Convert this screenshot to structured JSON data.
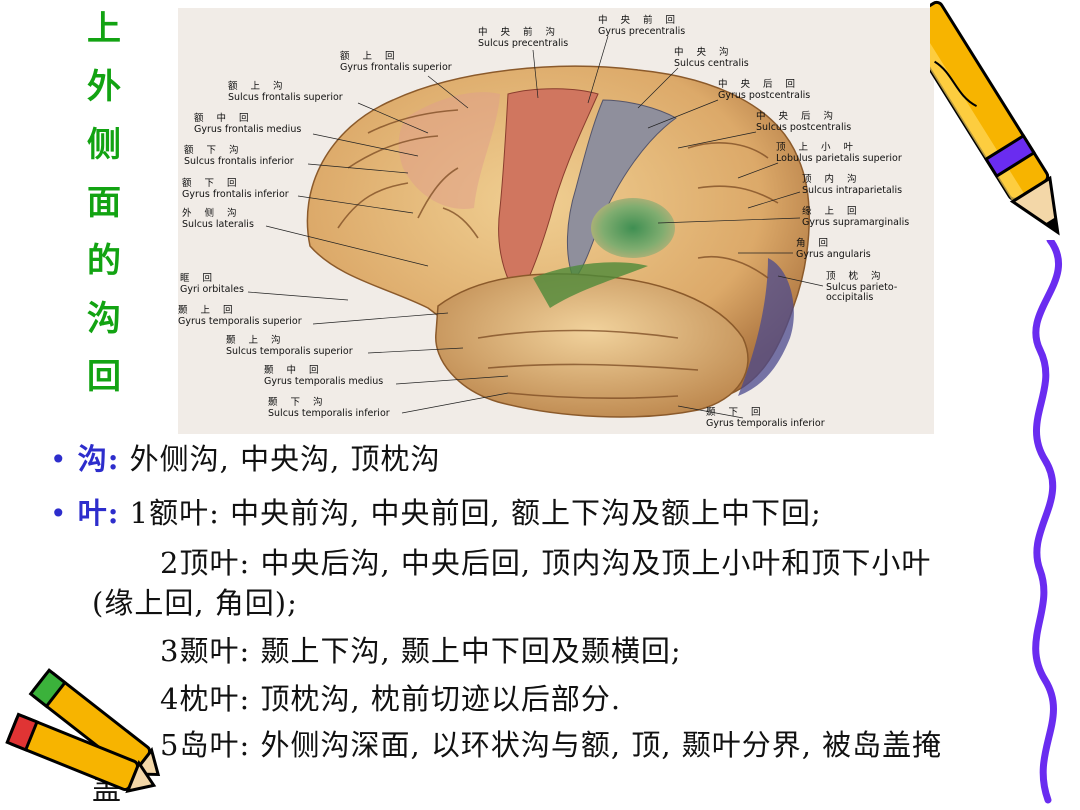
{
  "title_chars": [
    "上",
    "外",
    "侧",
    "面",
    "的",
    "沟",
    "回"
  ],
  "figure": {
    "labels_left": [
      {
        "cn": "额 上 回",
        "la": "Gyrus frontalis superior"
      },
      {
        "cn": "额 上 沟",
        "la": "Sulcus frontalis superior"
      },
      {
        "cn": "额 中 回",
        "la": "Gyrus frontalis medius"
      },
      {
        "cn": "额 下 沟",
        "la": "Sulcus frontalis inferior"
      },
      {
        "cn": "额 下 回",
        "la": "Gyrus frontalis inferior"
      },
      {
        "cn": "外 侧 沟",
        "la": "Sulcus lateralis"
      },
      {
        "cn": "眶 回",
        "la": "Gyri orbitales"
      },
      {
        "cn": "颞 上 回",
        "la": "Gyrus temporalis superior"
      },
      {
        "cn": "颞 上 沟",
        "la": "Sulcus temporalis superior"
      },
      {
        "cn": "颞 中 回",
        "la": "Gyrus temporalis medius"
      },
      {
        "cn": "颞 下 沟",
        "la": "Sulcus temporalis inferior"
      }
    ],
    "labels_top": [
      {
        "cn": "中 央 前 沟",
        "la": "Sulcus precentralis"
      },
      {
        "cn": "中 央 前 回",
        "la": "Gyrus precentralis"
      }
    ],
    "labels_right": [
      {
        "cn": "中 央 沟",
        "la": "Sulcus centralis"
      },
      {
        "cn": "中 央 后 回",
        "la": "Gyrus postcentralis"
      },
      {
        "cn": "中 央 后 沟",
        "la": "Sulcus postcentralis"
      },
      {
        "cn": "顶 上 小 叶",
        "la": "Lobulus parietalis superior"
      },
      {
        "cn": "顶 内 沟",
        "la": "Sulcus intraparietalis"
      },
      {
        "cn": "缘 上 回",
        "la": "Gyrus supramarginalis"
      },
      {
        "cn": "角 回",
        "la": "Gyrus angularis"
      },
      {
        "cn": "顶 枕 沟",
        "la": "Sulcus parieto-"
      },
      {
        "cn": "",
        "la": "occipitalis"
      },
      {
        "cn": "颞 下 回",
        "la": "Gyrus temporalis inferior"
      }
    ]
  },
  "bullets": {
    "b1_key": "沟:",
    "b1_text": "外侧沟, 中央沟, 顶枕沟",
    "b2_key": "叶:",
    "b2_text": "1额叶: 中央前沟, 中央前回, 额上下沟及额上中下回;",
    "l3": "2顶叶: 中央后沟, 中央后回, 顶内沟及顶上小叶和顶下小叶",
    "l4": "(缘上回, 角回);",
    "l5": "3颞叶: 颞上下沟, 颞上中下回及颞横回;",
    "l6": "4枕叶: 顶枕沟, 枕前切迹以后部分.",
    "l7": "5岛叶: 外侧沟深面, 以环状沟与额, 顶, 颞叶分界, 被岛盖掩",
    "l8": "盖"
  },
  "colors": {
    "title": "#12a312",
    "bullet_blue": "#2d2dcc",
    "precentral": "#d0765f",
    "postcentral": "#8f8f9c",
    "supramarginal": "#5f9a58",
    "temporal_green": "#4e8a3a",
    "occipital": "#3a3a8a",
    "cortex": "#e2bb78",
    "pencil_yellow": "#f7b400",
    "squiggle": "#6a2cf0"
  }
}
